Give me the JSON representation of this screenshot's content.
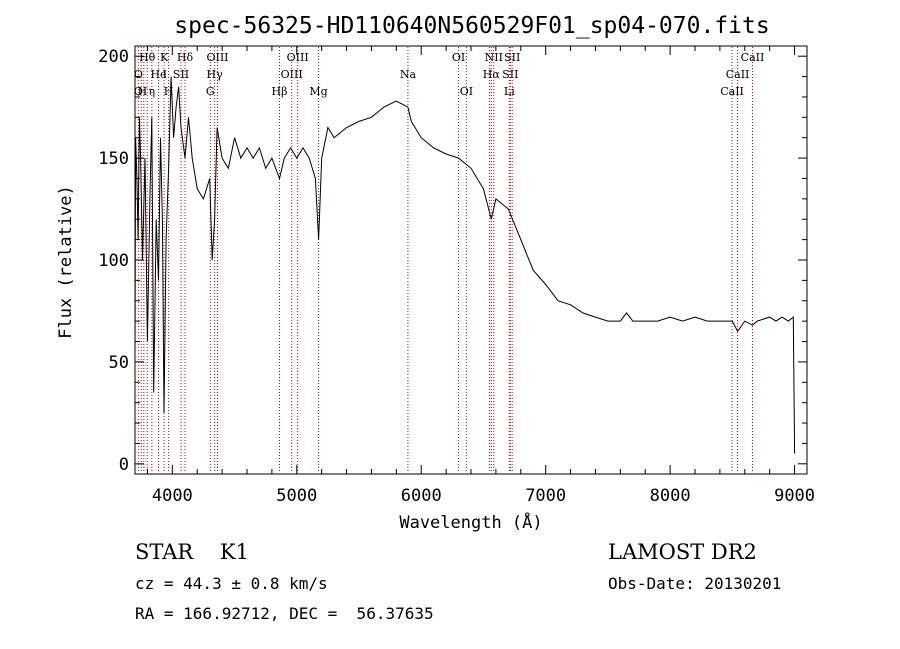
{
  "chart_data": {
    "type": "line",
    "title": "spec-56325-HD110640N560529F01_sp04-070.fits",
    "xlabel": "Wavelength (Å)",
    "ylabel": "Flux (relative)",
    "xlim": [
      3700,
      9100
    ],
    "ylim": [
      -5,
      205
    ],
    "x_ticks": [
      4000,
      5000,
      6000,
      7000,
      8000,
      9000
    ],
    "y_ticks": [
      0,
      50,
      100,
      150,
      200
    ],
    "grid": false,
    "series": [
      {
        "x": [
          3700,
          3705,
          3715,
          3725,
          3735,
          3745,
          3760,
          3780,
          3800,
          3820,
          3835,
          3850,
          3870,
          3889,
          3905,
          3920,
          3933,
          3950,
          3970,
          3990,
          4010,
          4030,
          4050,
          4070,
          4102,
          4130,
          4160,
          4200,
          4250,
          4300,
          4320,
          4340,
          4360,
          4400,
          4450,
          4500,
          4550,
          4600,
          4650,
          4700,
          4750,
          4800,
          4861,
          4900,
          4950,
          5000,
          5050,
          5100,
          5150,
          5175,
          5200,
          5250,
          5300,
          5400,
          5500,
          5600,
          5700,
          5800,
          5893,
          5920,
          6000,
          6100,
          6200,
          6300,
          6400,
          6500,
          6563,
          6600,
          6700,
          6800,
          6900,
          7000,
          7100,
          7200,
          7300,
          7400,
          7500,
          7600,
          7650,
          7700,
          7800,
          7900,
          8000,
          8100,
          8200,
          8300,
          8400,
          8500,
          8542,
          8600,
          8662,
          8700,
          8800,
          8850,
          8900,
          8950,
          8990,
          9000
        ],
        "y": [
          55,
          160,
          140,
          110,
          170,
          150,
          100,
          150,
          60,
          130,
          170,
          35,
          120,
          90,
          160,
          120,
          25,
          110,
          145,
          190,
          160,
          175,
          185,
          165,
          150,
          170,
          150,
          135,
          130,
          140,
          100,
          120,
          165,
          150,
          145,
          160,
          150,
          155,
          150,
          155,
          145,
          150,
          140,
          150,
          155,
          150,
          155,
          150,
          140,
          110,
          150,
          165,
          160,
          165,
          168,
          170,
          175,
          178,
          175,
          168,
          160,
          155,
          152,
          150,
          145,
          135,
          120,
          130,
          125,
          110,
          95,
          88,
          80,
          78,
          74,
          72,
          70,
          70,
          74,
          70,
          70,
          70,
          72,
          70,
          72,
          70,
          70,
          70,
          65,
          70,
          68,
          70,
          72,
          70,
          72,
          70,
          72,
          5
        ]
      }
    ],
    "annotations": [
      {
        "label": "Hθ",
        "x": 3798,
        "row": 1
      },
      {
        "label": "K",
        "x": 3934,
        "row": 1
      },
      {
        "label": "Hδ",
        "x": 4102,
        "row": 1
      },
      {
        "label": "OIII",
        "x": 4363,
        "row": 1
      },
      {
        "label": "OIII",
        "x": 5007,
        "row": 1
      },
      {
        "label": "OI",
        "x": 6300,
        "row": 1
      },
      {
        "label": "NII",
        "x": 6583,
        "row": 1
      },
      {
        "label": "SII",
        "x": 6731,
        "row": 1
      },
      {
        "label": "CaII",
        "x": 8662,
        "row": 1
      },
      {
        "label": "O",
        "x": 3727,
        "row": 2
      },
      {
        "label": "He",
        "x": 3889,
        "row": 2
      },
      {
        "label": "I",
        "x": 3940,
        "row": 2
      },
      {
        "label": "SII",
        "x": 4070,
        "row": 2
      },
      {
        "label": "Hγ",
        "x": 4340,
        "row": 2
      },
      {
        "label": "OIII",
        "x": 4959,
        "row": 2
      },
      {
        "label": "Na",
        "x": 5893,
        "row": 2
      },
      {
        "label": "Hα",
        "x": 6563,
        "row": 2
      },
      {
        "label": "SII",
        "x": 6716,
        "row": 2
      },
      {
        "label": "CaII",
        "x": 8542,
        "row": 2
      },
      {
        "label": "O",
        "x": 3727,
        "row": 3
      },
      {
        "label": "H",
        "x": 3760,
        "row": 3
      },
      {
        "label": "η",
        "x": 3835,
        "row": 3
      },
      {
        "label": "H",
        "x": 3970,
        "row": 3
      },
      {
        "label": "G",
        "x": 4305,
        "row": 3
      },
      {
        "label": "Hβ",
        "x": 4861,
        "row": 3
      },
      {
        "label": "Mg",
        "x": 5175,
        "row": 3
      },
      {
        "label": "OI",
        "x": 6363,
        "row": 3
      },
      {
        "label": "Li",
        "x": 6708,
        "row": 3
      },
      {
        "label": "CaII",
        "x": 8498,
        "row": 3
      }
    ],
    "lines_x": [
      3727,
      3750,
      3771,
      3798,
      3835,
      3889,
      3934,
      3970,
      4070,
      4102,
      4305,
      4340,
      4363,
      4861,
      4959,
      5007,
      5175,
      5893,
      6300,
      6363,
      6548,
      6563,
      6583,
      6708,
      6716,
      6731,
      8498,
      8542,
      8662
    ],
    "line_color": "#cc0000"
  },
  "footer": {
    "class_line": "STAR    K1",
    "survey": "LAMOST DR2",
    "cz": "cz = 44.3 ± 0.8 km/s",
    "obs_date": "Obs-Date: 20130201",
    "coords": "RA = 166.92712, DEC =  56.37635"
  }
}
